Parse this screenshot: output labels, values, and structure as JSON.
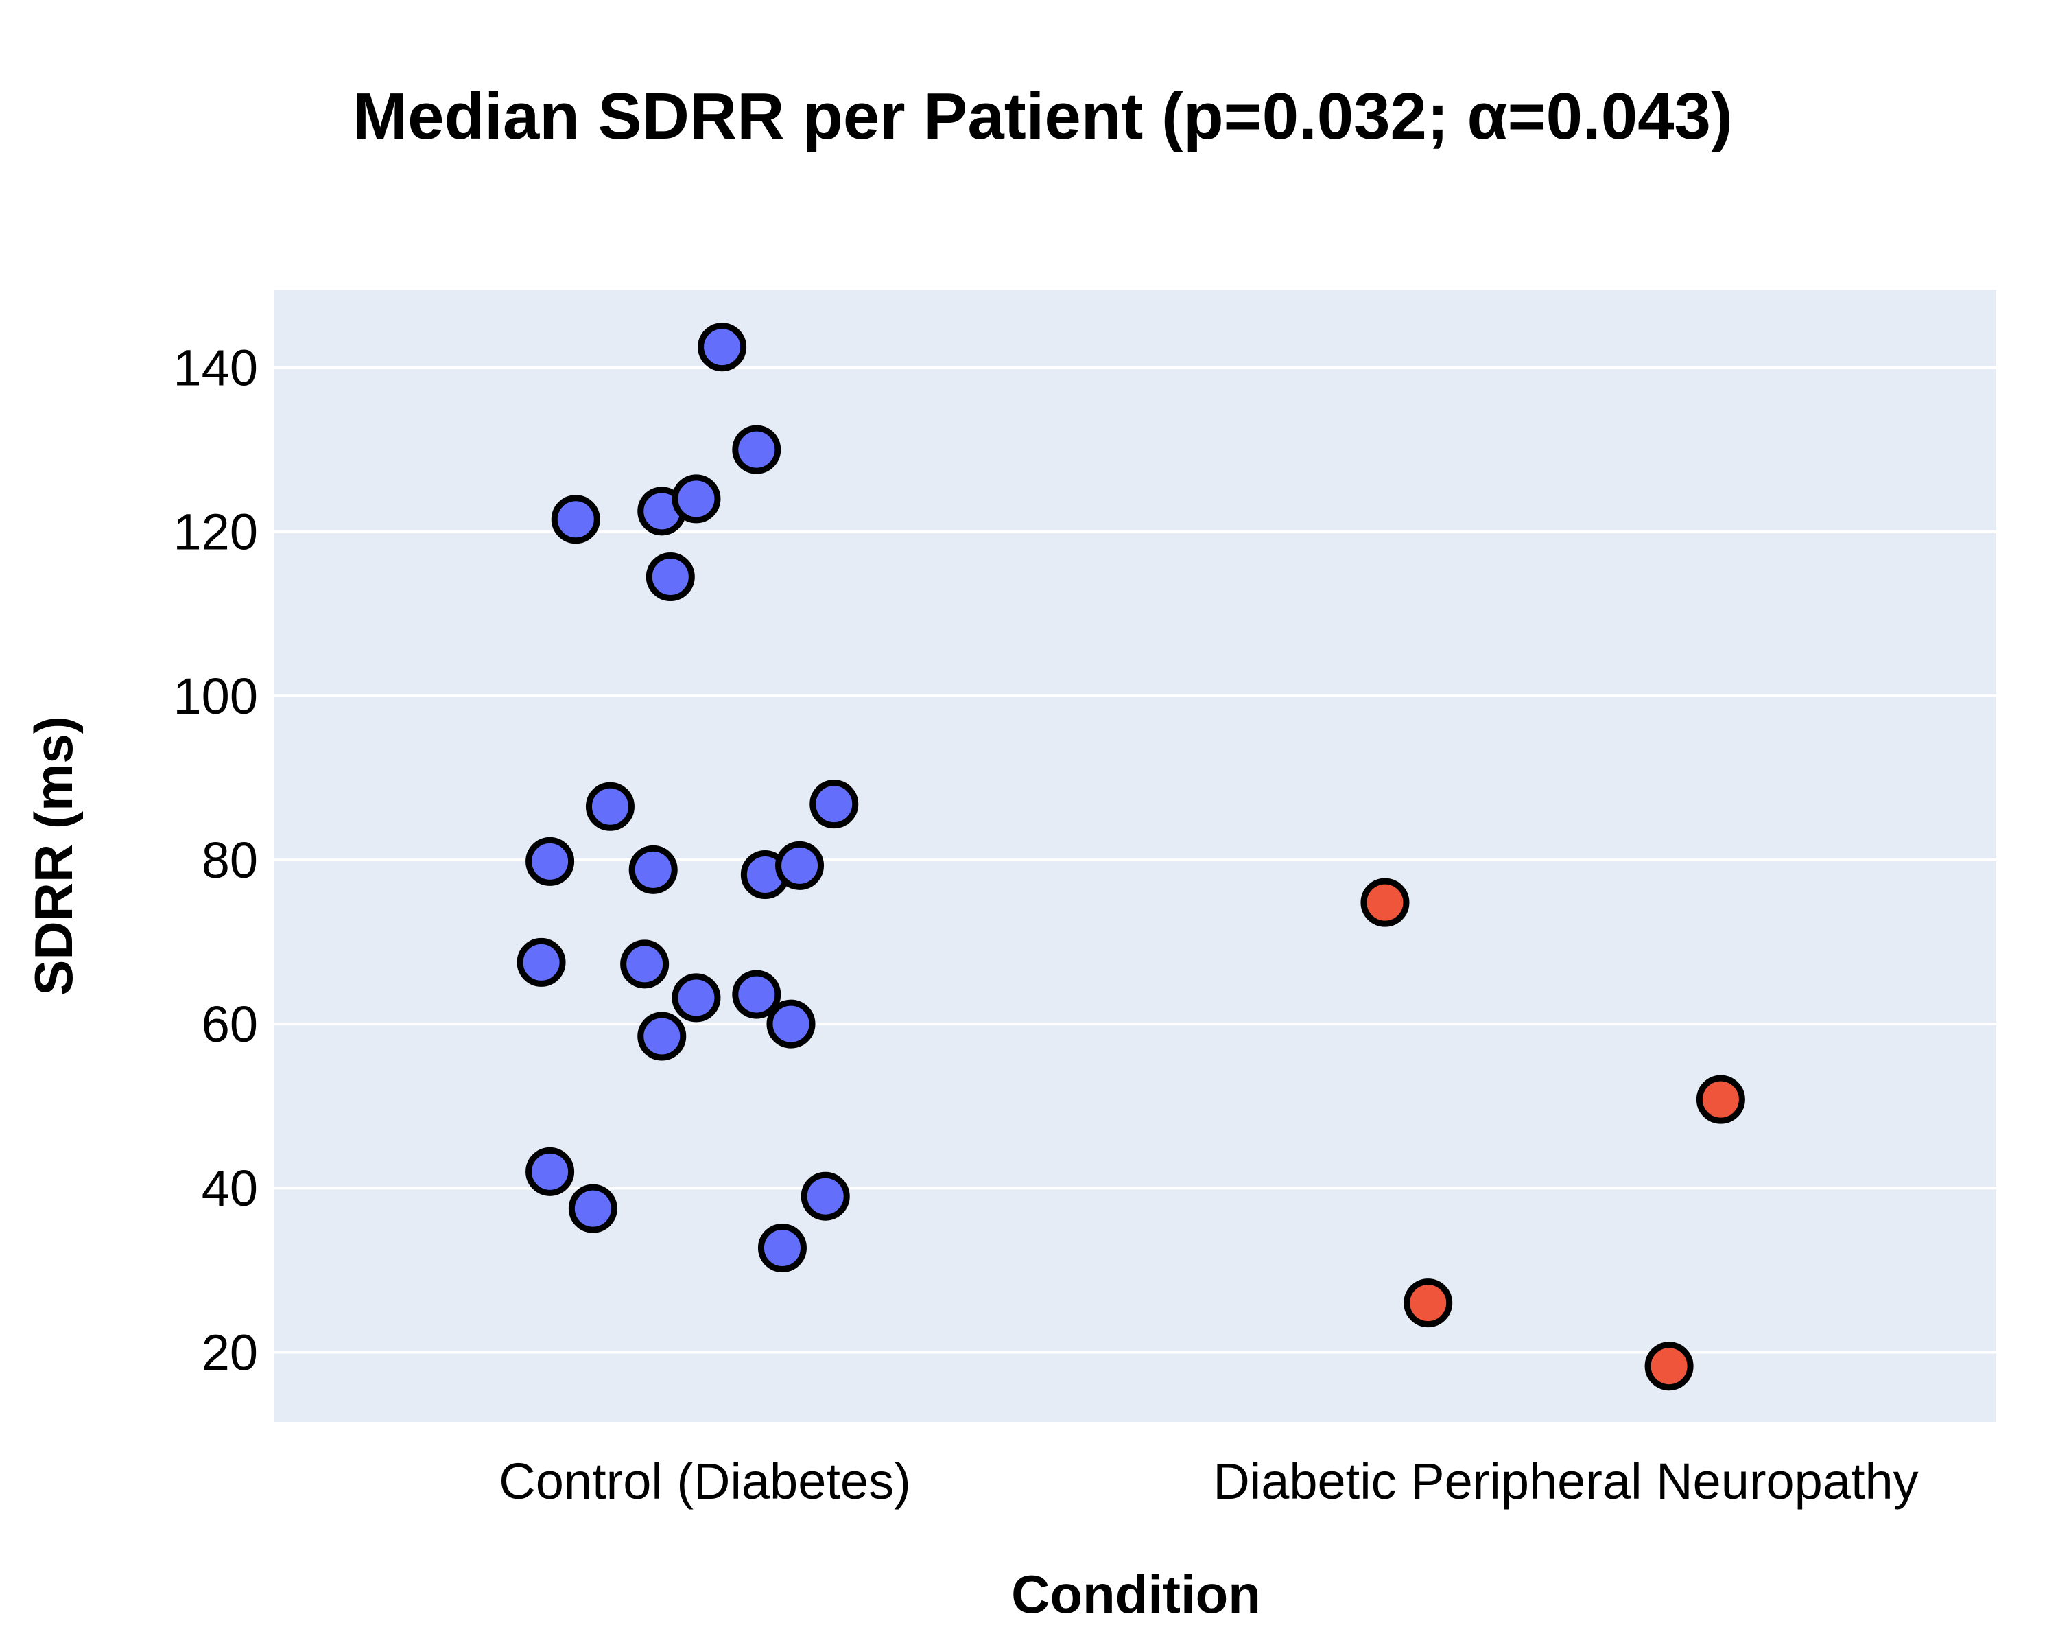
{
  "chart_data": {
    "type": "scatter",
    "title": "Median SDRR per Patient (p=0.032; α=0.043)",
    "xlabel": "Condition",
    "ylabel": "SDRR (ms)",
    "categories": [
      "Control (Diabetes)",
      "Diabetic Peripheral Neuropathy"
    ],
    "ylim": [
      11.5,
      149.5
    ],
    "yticks": [
      20,
      40,
      60,
      80,
      100,
      120,
      140
    ],
    "grid": true,
    "legend": "none",
    "colors": {
      "background": "#e5ecf6",
      "grid": "#ffffff",
      "marker_outline": "#000000"
    },
    "series": [
      {
        "category": "Control (Diabetes)",
        "color": "#636efa",
        "points": [
          {
            "jitter": 0.02,
            "y": 142.5
          },
          {
            "jitter": 0.06,
            "y": 130.0
          },
          {
            "jitter": -0.15,
            "y": 121.5
          },
          {
            "jitter": -0.05,
            "y": 122.5
          },
          {
            "jitter": -0.01,
            "y": 124.0
          },
          {
            "jitter": -0.04,
            "y": 114.5
          },
          {
            "jitter": -0.11,
            "y": 86.5
          },
          {
            "jitter": 0.15,
            "y": 86.8
          },
          {
            "jitter": -0.18,
            "y": 79.8
          },
          {
            "jitter": -0.06,
            "y": 78.8
          },
          {
            "jitter": 0.07,
            "y": 78.2
          },
          {
            "jitter": 0.11,
            "y": 79.3
          },
          {
            "jitter": -0.19,
            "y": 67.5
          },
          {
            "jitter": -0.07,
            "y": 67.3
          },
          {
            "jitter": -0.01,
            "y": 63.2
          },
          {
            "jitter": 0.06,
            "y": 63.6
          },
          {
            "jitter": 0.1,
            "y": 60.0
          },
          {
            "jitter": -0.05,
            "y": 58.5
          },
          {
            "jitter": -0.18,
            "y": 42.0
          },
          {
            "jitter": -0.13,
            "y": 37.5
          },
          {
            "jitter": 0.14,
            "y": 39.0
          },
          {
            "jitter": 0.09,
            "y": 32.7
          }
        ]
      },
      {
        "category": "Diabetic Peripheral Neuropathy",
        "color": "#ef553b",
        "points": [
          {
            "jitter": -0.21,
            "y": 74.8
          },
          {
            "jitter": -0.16,
            "y": 26.0
          },
          {
            "jitter": 0.18,
            "y": 50.8
          },
          {
            "jitter": 0.12,
            "y": 18.3
          }
        ]
      }
    ]
  }
}
